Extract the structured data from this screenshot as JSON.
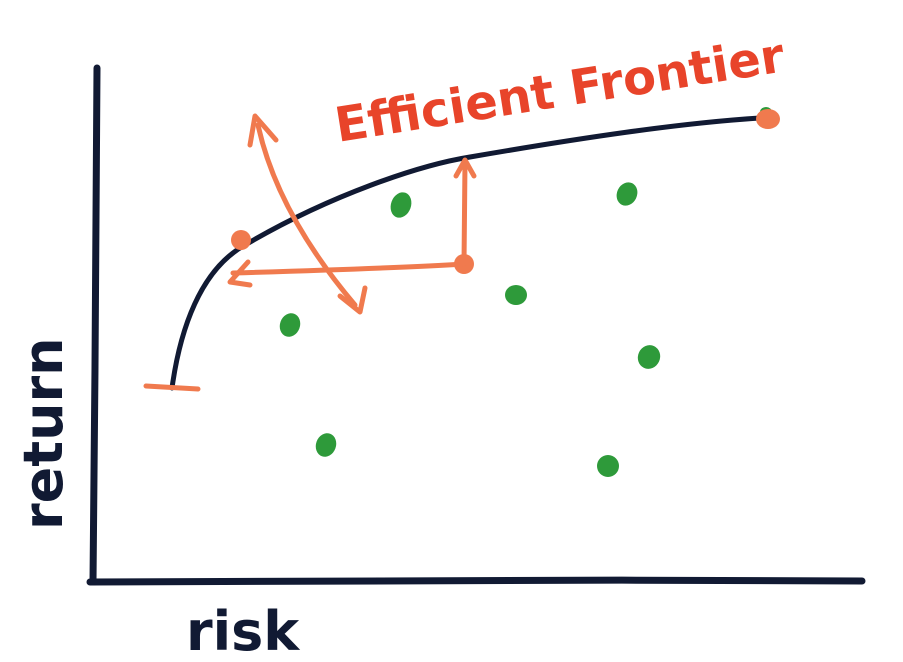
{
  "title": "Efficient Frontier",
  "xlabel": "risk",
  "ylabel": "return",
  "colors": {
    "ink": "#111a33",
    "annotation": "#f07a4e",
    "title": "#e8442a",
    "portfolio": "#2e9a3a"
  },
  "chart_data": {
    "type": "scatter",
    "title": "Efficient Frontier",
    "xlabel": "risk",
    "ylabel": "return",
    "series": [
      {
        "name": "",
        "role": "portfolios",
        "count": 8
      },
      {
        "name": "",
        "role": "efficient-frontier-curve"
      }
    ],
    "annotations": [
      "minimum-risk portfolio marker at start of curve",
      "arrow from an interior portfolio left to the frontier (same return, lower risk)",
      "arrow from the same portfolio up to the frontier (same risk, higher return)",
      "double-headed arrow showing direction of improvement",
      "maximum-return portfolio at end of curve"
    ]
  }
}
